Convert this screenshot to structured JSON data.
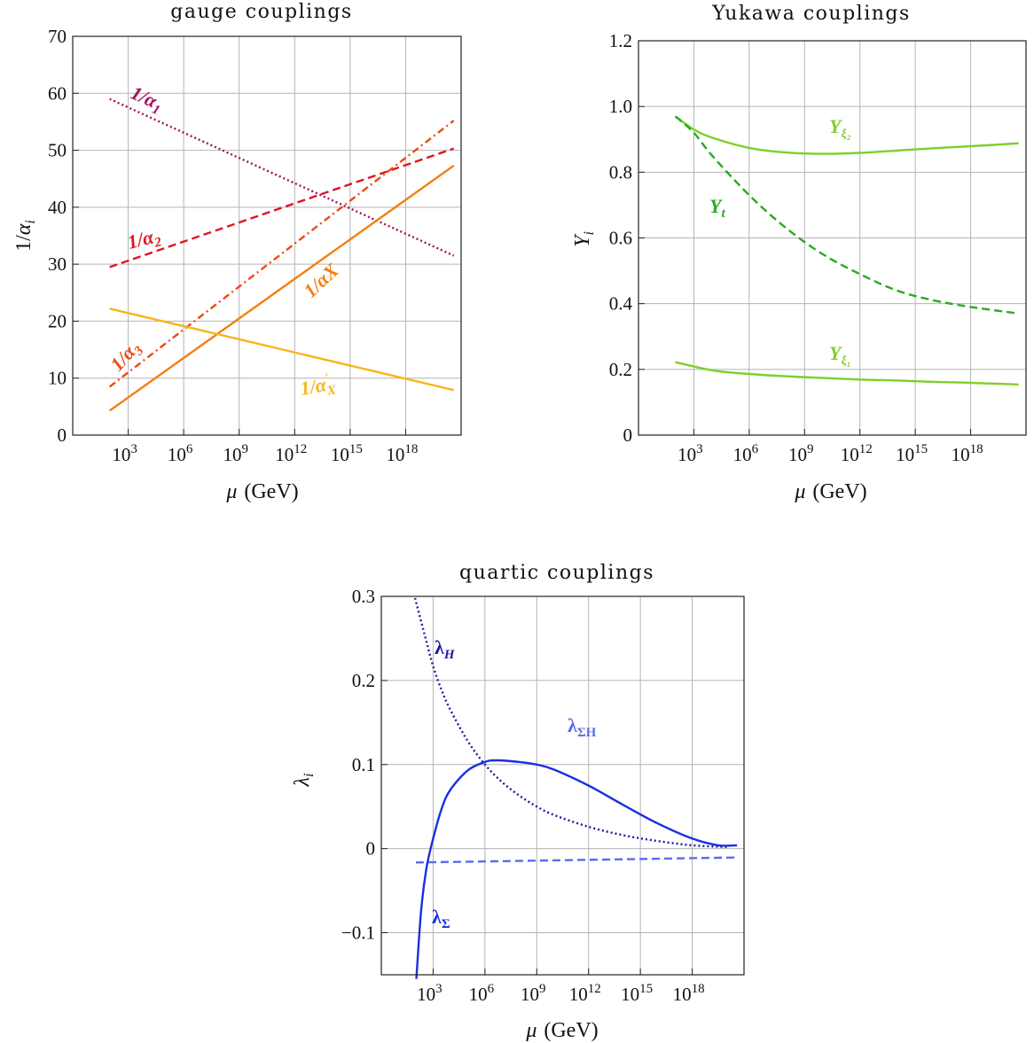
{
  "chart_data": [
    {
      "id": "gauge",
      "type": "line",
      "title": "gauge couplings",
      "xlabel": "μ (GeV)",
      "ylabel": "1/α_i",
      "xscale": "log10",
      "xlim_log10": [
        0,
        21
      ],
      "ylim": [
        0,
        70
      ],
      "x_ticks": [
        "10^3",
        "10^6",
        "10^9",
        "10^12",
        "10^15",
        "10^18"
      ],
      "y_ticks": [
        "0",
        "10",
        "20",
        "30",
        "40",
        "50",
        "60",
        "70"
      ],
      "grid": true,
      "series": [
        {
          "name": "1/α1",
          "color": "#a0105a",
          "dash": "dotted",
          "log10_mu": [
            2,
            20.6
          ],
          "values": [
            59.0,
            31.5
          ]
        },
        {
          "name": "1/α2",
          "color": "#e0141e",
          "dash": "dashed",
          "log10_mu": [
            2,
            20.6
          ],
          "values": [
            29.5,
            50.3
          ]
        },
        {
          "name": "1/α3",
          "color": "#ec4a12",
          "dash": "dashdot",
          "log10_mu": [
            2,
            20.6
          ],
          "values": [
            8.5,
            55.2
          ]
        },
        {
          "name": "1/αX",
          "color": "#f27e12",
          "dash": "solid",
          "log10_mu": [
            2,
            20.6
          ],
          "values": [
            4.3,
            47.3
          ]
        },
        {
          "name": "1/α'X",
          "color": "#f7b516",
          "dash": "solid",
          "log10_mu": [
            2,
            20.6
          ],
          "values": [
            22.2,
            7.9
          ]
        }
      ]
    },
    {
      "id": "yukawa",
      "type": "line",
      "title": "Yukawa couplings",
      "xlabel": "μ (GeV)",
      "ylabel": "Y_i",
      "xscale": "log10",
      "xlim_log10": [
        0,
        21
      ],
      "ylim": [
        0,
        1.2
      ],
      "x_ticks": [
        "10^3",
        "10^6",
        "10^9",
        "10^12",
        "10^15",
        "10^18"
      ],
      "y_ticks": [
        "0",
        "0.2",
        "0.4",
        "0.6",
        "0.8",
        "1.0",
        "1.2"
      ],
      "grid": true,
      "series": [
        {
          "name": "Yξ2",
          "color": "#7fcf2a",
          "dash": "solid",
          "log10_mu": [
            2,
            3,
            4,
            6,
            8,
            10,
            12,
            14,
            16,
            18,
            20.6
          ],
          "values": [
            0.97,
            0.93,
            0.905,
            0.874,
            0.86,
            0.856,
            0.859,
            0.866,
            0.873,
            0.879,
            0.888
          ]
        },
        {
          "name": "Yt",
          "color": "#2aaa20",
          "dash": "dashed",
          "log10_mu": [
            2,
            3,
            4,
            6,
            8,
            10,
            12,
            14,
            16,
            18,
            20.6
          ],
          "values": [
            0.97,
            0.92,
            0.85,
            0.73,
            0.63,
            0.55,
            0.49,
            0.44,
            0.41,
            0.39,
            0.37
          ]
        },
        {
          "name": "Yξ1",
          "color": "#7fcf2a",
          "dash": "solid",
          "log10_mu": [
            2,
            4,
            6,
            8,
            10,
            12,
            14,
            16,
            18,
            20.6
          ],
          "values": [
            0.222,
            0.197,
            0.186,
            0.179,
            0.174,
            0.169,
            0.166,
            0.162,
            0.159,
            0.154
          ]
        }
      ]
    },
    {
      "id": "quartic",
      "type": "line",
      "title": "quartic couplings",
      "xlabel": "μ (GeV)",
      "ylabel": "λ_i",
      "xscale": "log10",
      "xlim_log10": [
        0,
        21
      ],
      "ylim": [
        -0.15,
        0.3
      ],
      "x_ticks": [
        "10^3",
        "10^6",
        "10^9",
        "10^12",
        "10^15",
        "10^18"
      ],
      "y_ticks": [
        "−0.1",
        "0",
        "0.1",
        "0.2",
        "0.3"
      ],
      "grid": true,
      "series": [
        {
          "name": "λH",
          "color": "#1a1aa0",
          "dash": "dotted",
          "log10_mu": [
            1.95,
            2.5,
            3,
            3.5,
            4,
            5,
            6,
            7,
            8,
            9,
            10,
            12,
            14,
            16,
            18,
            20
          ],
          "values": [
            0.298,
            0.255,
            0.217,
            0.188,
            0.165,
            0.128,
            0.1,
            0.079,
            0.063,
            0.05,
            0.04,
            0.026,
            0.016,
            0.009,
            0.004,
            0.002
          ]
        },
        {
          "name": "λΣ",
          "color": "#1a2ee0",
          "dash": "solid",
          "log10_mu": [
            2.03,
            2.3,
            2.6,
            3,
            3.5,
            4,
            5,
            6,
            6.7,
            8,
            9,
            10,
            12,
            14,
            16,
            18,
            19.5,
            20.6
          ],
          "values": [
            -0.155,
            -0.075,
            -0.025,
            0.012,
            0.048,
            0.07,
            0.093,
            0.103,
            0.105,
            0.103,
            0.1,
            0.094,
            0.075,
            0.052,
            0.03,
            0.012,
            0.004,
            0.004
          ]
        },
        {
          "name": "λΣH",
          "color": "#5a6af0",
          "dash": "dashed",
          "log10_mu": [
            2,
            20.6
          ],
          "values": [
            -0.0165,
            -0.0105
          ]
        }
      ]
    }
  ],
  "labels": {
    "a1": "1/α",
    "a1_sub": "1",
    "a2": "1/α",
    "a2_sub": "2",
    "a3": "1/α",
    "a3_sub": "3",
    "aX": "1/αX",
    "aXp": "1/α",
    "aXp_sup": "'",
    "aXp_sub": "X",
    "yxi2": "Y",
    "yxi2_sub": "ξ₂",
    "yt": "Y",
    "yt_sub": "t",
    "yxi1": "Y",
    "yxi1_sub": "ξ₁",
    "lH": "λ",
    "lH_sub": "H",
    "lS": "λ",
    "lS_sub": "Σ",
    "lSH": "λ",
    "lSH_sub": "ΣH"
  }
}
